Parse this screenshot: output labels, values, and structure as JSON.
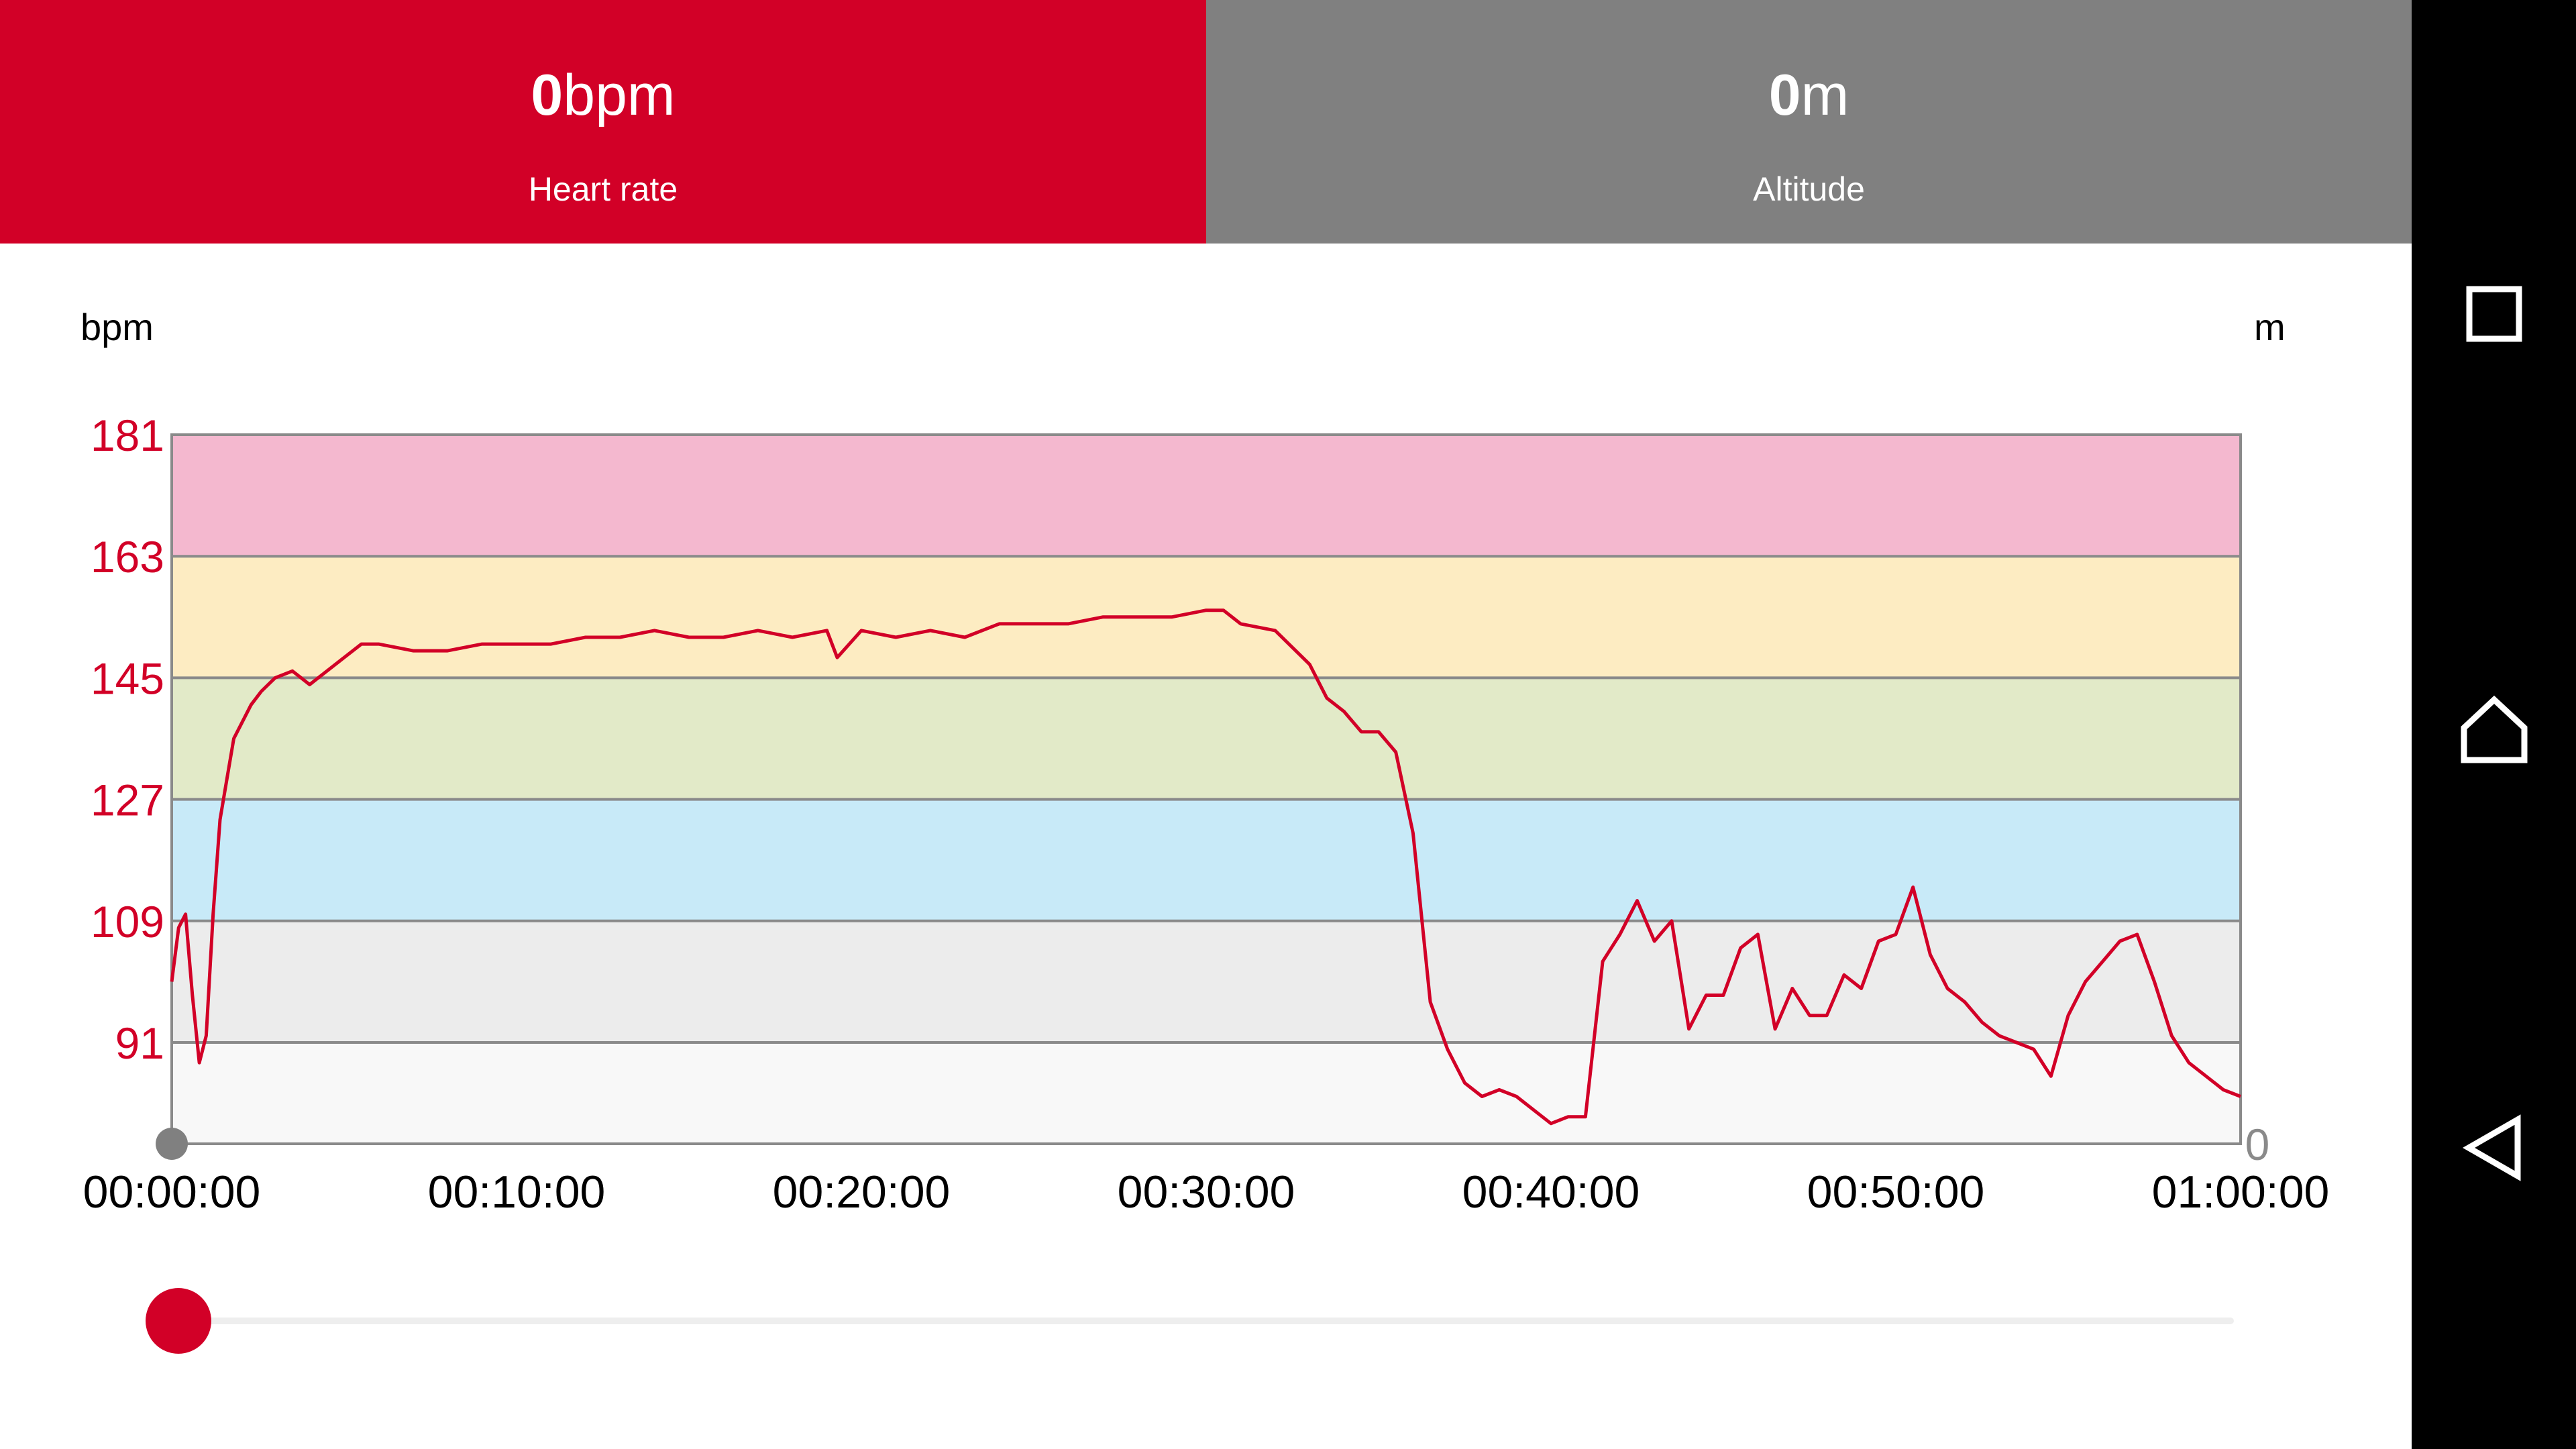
{
  "colors": {
    "accent": "#d20027",
    "tab_inactive": "#808080",
    "zone_colors": [
      "#f8f8f8",
      "#ececec",
      "#c8eaf8",
      "#e2eac8",
      "#fdecc2",
      "#f4b8cf"
    ],
    "grid": "#8a8a8a",
    "tick_label_y": "#d20027",
    "tick_label_x": "#000000",
    "line": "#d20027"
  },
  "tabs": {
    "heart_rate": {
      "value": "0",
      "unit": "bpm",
      "label": "Heart rate"
    },
    "altitude": {
      "value": "0",
      "unit": "m",
      "label": "Altitude"
    }
  },
  "chart": {
    "y_unit_left": "bpm",
    "y_unit_right": "m",
    "right_axis_tick": "0"
  },
  "navbar": {
    "icons": [
      "recent-apps-icon",
      "home-icon",
      "back-icon"
    ]
  },
  "seekbar": {
    "position": 0.0
  },
  "chart_data": {
    "type": "line",
    "xlabel": "",
    "ylabel": "bpm",
    "x_ticks": [
      "00:00:00",
      "00:10:00",
      "00:20:00",
      "00:30:00",
      "00:40:00",
      "00:50:00",
      "01:00:00"
    ],
    "y_ticks": [
      181,
      163,
      145,
      127,
      109,
      91
    ],
    "xlim_minutes": [
      0,
      60
    ],
    "ylim": [
      76,
      181
    ],
    "zones": [
      76,
      91,
      109,
      127,
      145,
      163,
      181
    ],
    "grid": true,
    "series": [
      {
        "x_minutes": [
          0,
          0.2,
          0.4,
          0.6,
          0.8,
          1.0,
          1.2,
          1.4,
          1.6,
          1.8,
          2.0,
          2.3,
          2.6,
          3.0,
          3.5,
          4.0,
          4.5,
          5.0,
          5.5,
          6.0,
          7.0,
          8.0,
          9.0,
          10.0,
          11.0,
          12.0,
          13.0,
          14.0,
          15.0,
          16.0,
          17.0,
          18.0,
          19.0,
          19.3,
          20.0,
          21.0,
          22.0,
          23.0,
          24.0,
          25.0,
          26.0,
          27.0,
          28.0,
          29.0,
          30.0,
          30.5,
          31.0,
          32.0,
          33.0,
          33.5,
          34.0,
          34.5,
          35.0,
          35.5,
          36.0,
          36.5,
          37.0,
          37.5,
          38.0,
          38.5,
          39.0,
          39.5,
          40.0,
          40.5,
          41.0,
          41.5,
          42.0,
          42.5,
          43.0,
          43.5,
          44.0,
          44.5,
          45.0,
          45.5,
          46.0,
          46.5,
          47.0,
          47.5,
          48.0,
          48.5,
          49.0,
          49.5,
          50.0,
          50.5,
          51.0,
          51.5,
          52.0,
          52.5,
          53.0,
          53.5,
          54.0,
          54.5,
          55.0,
          55.5,
          56.0,
          56.5,
          57.0,
          57.5,
          58.0,
          58.5,
          59.0,
          59.5,
          60.0
        ],
        "y": [
          100,
          108,
          110,
          98,
          88,
          92,
          110,
          124,
          130,
          136,
          138,
          141,
          143,
          145,
          146,
          144,
          146,
          148,
          150,
          150,
          149,
          149,
          150,
          150,
          150,
          151,
          151,
          152,
          151,
          151,
          152,
          151,
          152,
          148,
          152,
          151,
          152,
          151,
          153,
          153,
          153,
          154,
          154,
          154,
          155,
          155,
          153,
          152,
          147,
          142,
          140,
          137,
          137,
          134,
          122,
          97,
          90,
          85,
          83,
          84,
          83,
          81,
          79,
          80,
          80,
          103,
          107,
          112,
          106,
          109,
          93,
          98,
          98,
          105,
          107,
          93,
          99,
          95,
          95,
          101,
          99,
          106,
          107,
          114,
          104,
          99,
          97,
          94,
          92,
          91,
          90,
          86,
          95,
          100,
          103,
          106,
          107,
          100,
          92,
          88,
          86,
          84,
          83
        ]
      }
    ]
  }
}
